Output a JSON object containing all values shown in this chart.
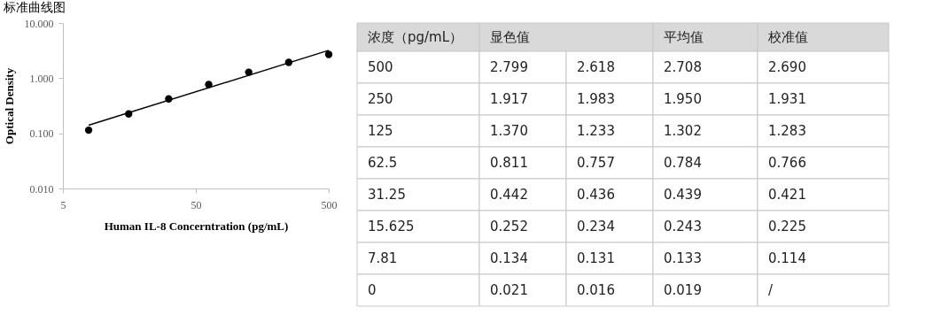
{
  "chart_data": [
    {
      "type": "scatter",
      "title": "标准曲线图",
      "xlabel": "Human IL-8 Concerntration (pg/mL)",
      "ylabel": "Optical Density",
      "log": "xy",
      "grid": false,
      "marker": "circle",
      "xlim": [
        5,
        500
      ],
      "xticks": [
        5,
        50,
        500
      ],
      "ylim": [
        0.01,
        10
      ],
      "yticks": [
        {
          "value": 0.01,
          "label": "0.010"
        },
        {
          "value": 0.1,
          "label": "0.100"
        },
        {
          "value": 1,
          "label": "1.000"
        },
        {
          "value": 10,
          "label": "10.000"
        }
      ],
      "series": [
        {
          "type": "scatter",
          "color": "#000000",
          "x": [
            7.81,
            15.625,
            31.25,
            62.5,
            125,
            250,
            500
          ],
          "values": [
            0.114,
            0.225,
            0.421,
            0.766,
            1.283,
            1.931,
            2.69
          ]
        },
        {
          "type": "line",
          "color": "#000000",
          "x": [
            7.81,
            500
          ],
          "values": [
            0.14,
            3.2
          ],
          "marker": "none"
        }
      ]
    },
    {
      "type": "other",
      "annotations": [
        "浓度（pg/mL）",
        "显色值",
        "平均值",
        "校准值",
        "500",
        "2.799",
        "2.618",
        "2.708",
        "2.690",
        "250",
        "1.917",
        "1.983",
        "1.950",
        "1.931",
        "125",
        "1.370",
        "1.233",
        "1.302",
        "1.283",
        "62.5",
        "0.811",
        "0.757",
        "0.784",
        "0.766",
        "31.25",
        "0.442",
        "0.436",
        "0.439",
        "0.421",
        "15.625",
        "0.252",
        "0.234",
        "0.243",
        "0.225",
        "7.81",
        "0.134",
        "0.131",
        "0.133",
        "0.114",
        "0",
        "0.021",
        "0.016",
        "0.019",
        "/"
      ]
    }
  ]
}
